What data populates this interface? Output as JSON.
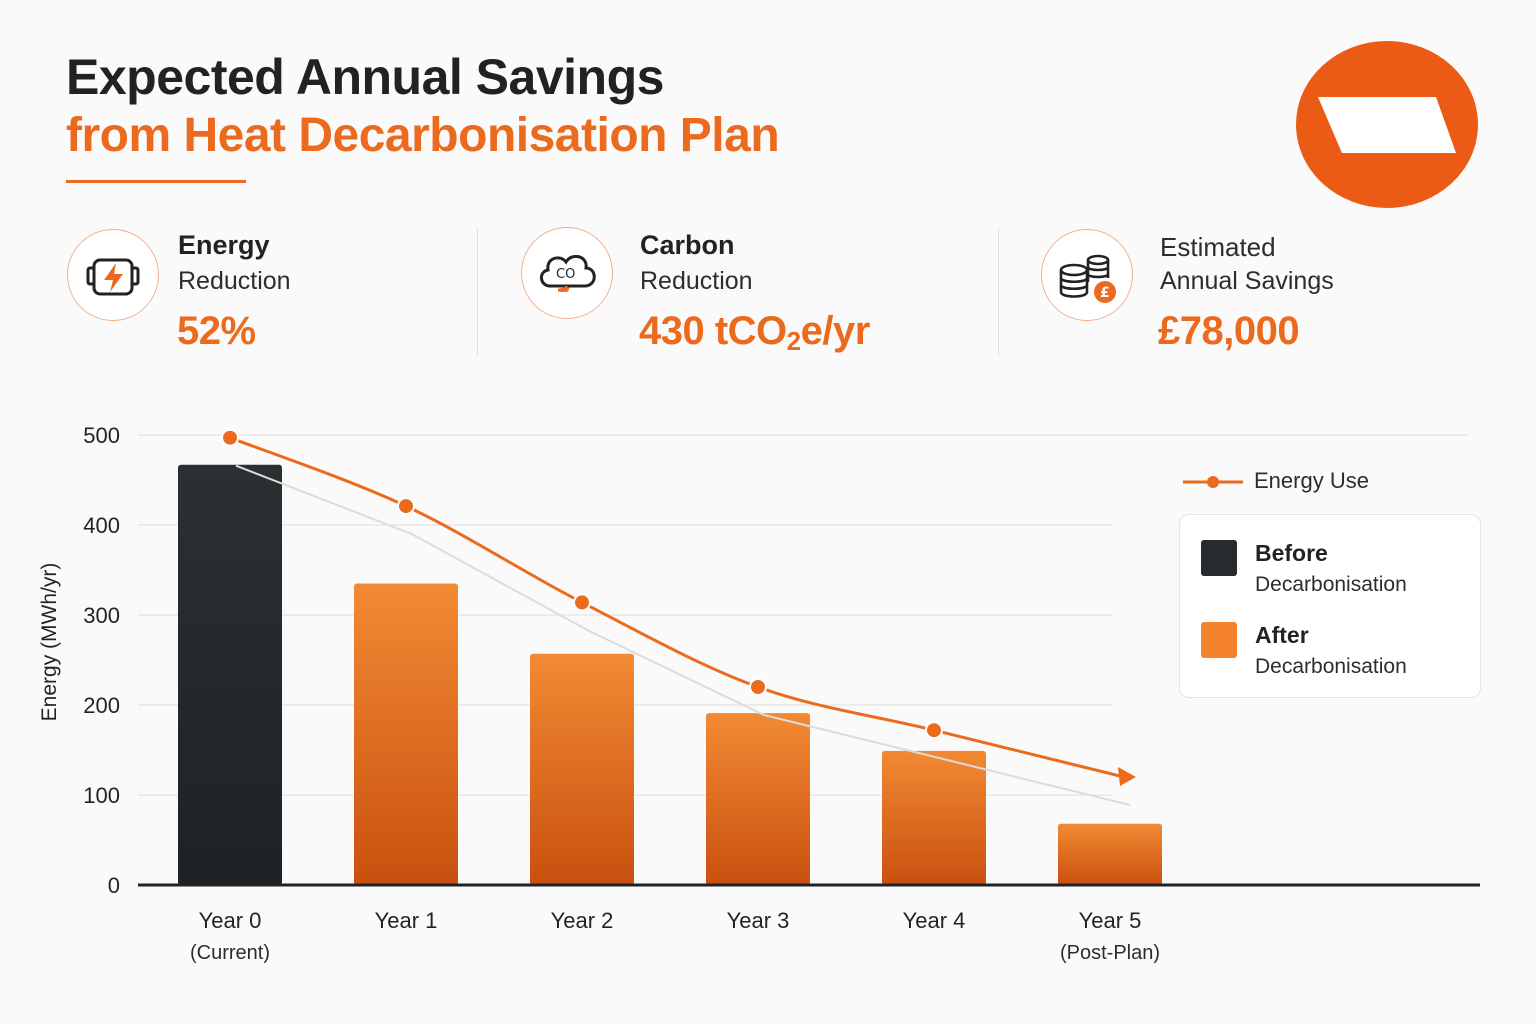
{
  "header": {
    "title_line1": "Expected Annual Savings",
    "title_line2": "from Heat Decarbonisation Plan"
  },
  "colors": {
    "accent": "#ec6a1e",
    "dark": "#262b2e",
    "after_swatch": "#f5832e"
  },
  "kpis": [
    {
      "icon": "battery-bolt-icon",
      "label_bold": "Energy",
      "label_rest": "Reduction",
      "value": "52%"
    },
    {
      "icon": "co2-cloud-icon",
      "label_bold": "Carbon",
      "label_rest": "Reduction",
      "value_main": "430 tCO",
      "value_sub": "2",
      "value_tail": "e/yr"
    },
    {
      "icon": "coins-icon",
      "label_line1": "Estimated",
      "label_line2": "Annual Savings",
      "value": "£78,000"
    }
  ],
  "legend": {
    "line_label": "Energy Use",
    "before_title": "Before",
    "before_sub": "Decarbonisation",
    "after_title": "After",
    "after_sub": "Decarbonisation"
  },
  "chart_data": {
    "type": "bar",
    "title": "Expected Annual Savings from Heat Decarbonisation Plan",
    "ylabel": "Energy (MWh/yr)",
    "xlabel": "",
    "ylim": [
      0,
      500
    ],
    "yticks": [
      0,
      100,
      200,
      300,
      400,
      500
    ],
    "grid": true,
    "legend_position": "right",
    "categories": [
      {
        "label": "Year 0",
        "sub": "(Current)"
      },
      {
        "label": "Year 1",
        "sub": ""
      },
      {
        "label": "Year 2",
        "sub": ""
      },
      {
        "label": "Year 3",
        "sub": ""
      },
      {
        "label": "Year 4",
        "sub": ""
      },
      {
        "label": "Year 5",
        "sub": "(Post-Plan)"
      }
    ],
    "series": [
      {
        "name": "Before Decarbonisation",
        "values": [
          467,
          null,
          null,
          null,
          null,
          null
        ]
      },
      {
        "name": "After Decarbonisation",
        "values": [
          null,
          335,
          257,
          191,
          149,
          68
        ]
      },
      {
        "name": "Energy Use",
        "kind": "line",
        "values": [
          497,
          421,
          314,
          220,
          172,
          120
        ]
      }
    ]
  }
}
